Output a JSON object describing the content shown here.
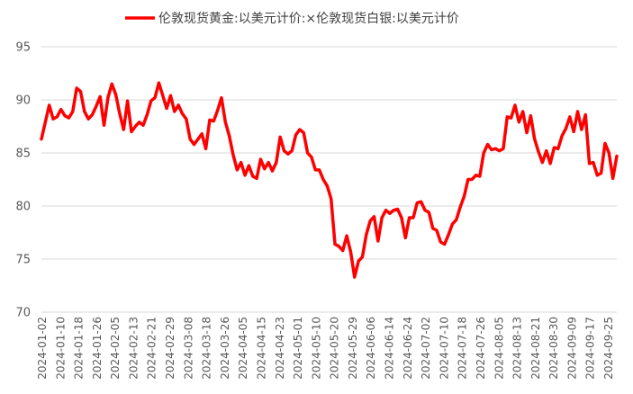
{
  "chart_data": {
    "type": "line",
    "title": "",
    "xlabel": "",
    "ylabel": "",
    "legend": {
      "position": "top-center"
    },
    "grid": true,
    "ylim": [
      70,
      95
    ],
    "yticks": [
      70,
      75,
      80,
      85,
      90,
      95
    ],
    "xticks": [
      "2024-01-02",
      "2024-01-10",
      "2024-01-18",
      "2024-01-26",
      "2024-02-05",
      "2024-02-13",
      "2024-02-21",
      "2024-02-29",
      "2024-03-08",
      "2024-03-18",
      "2024-03-26",
      "2024-04-05",
      "2024-04-15",
      "2024-04-23",
      "2024-05-01",
      "2024-05-10",
      "2024-05-20",
      "2024-05-29",
      "2024-06-06",
      "2024-06-14",
      "2024-06-24",
      "2024-07-02",
      "2024-07-10",
      "2024-07-18",
      "2024-07-26",
      "2024-08-05",
      "2024-08-13",
      "2024-08-21",
      "2024-08-30",
      "2024-09-09",
      "2024-09-17",
      "2024-09-25"
    ],
    "series": [
      {
        "name": "伦敦现货黄金:以美元计价:×伦敦现货白银:以美元计价",
        "color": "#ff0000",
        "values": [
          86.3,
          87.9,
          89.5,
          88.2,
          88.4,
          89.1,
          88.5,
          88.3,
          88.9,
          91.1,
          90.8,
          88.9,
          88.2,
          88.6,
          89.4,
          90.3,
          87.6,
          90.2,
          91.5,
          90.5,
          88.7,
          87.2,
          89.9,
          87.0,
          87.5,
          87.9,
          87.6,
          88.6,
          89.9,
          90.2,
          91.6,
          90.4,
          89.2,
          90.4,
          88.9,
          89.5,
          88.7,
          88.2,
          86.3,
          85.8,
          86.3,
          86.8,
          85.4,
          88.1,
          88.0,
          89.0,
          90.2,
          87.9,
          86.6,
          84.8,
          83.4,
          84.1,
          82.9,
          83.8,
          82.8,
          82.6,
          84.4,
          83.5,
          84.1,
          83.3,
          84.1,
          86.5,
          85.2,
          84.9,
          85.2,
          86.7,
          87.2,
          86.9,
          85.0,
          84.6,
          83.4,
          83.4,
          82.5,
          81.9,
          80.7,
          76.4,
          76.2,
          75.8,
          77.2,
          75.7,
          73.3,
          74.8,
          75.2,
          77.3,
          78.6,
          79.0,
          76.7,
          78.9,
          79.6,
          79.3,
          79.6,
          79.7,
          78.9,
          77.0,
          78.9,
          78.9,
          80.3,
          80.4,
          79.6,
          79.4,
          77.9,
          77.7,
          76.6,
          76.4,
          77.3,
          78.3,
          78.7,
          79.9,
          80.9,
          82.5,
          82.5,
          82.9,
          82.8,
          85.0,
          85.8,
          85.3,
          85.4,
          85.2,
          85.4,
          88.4,
          88.3,
          89.5,
          87.9,
          88.9,
          86.9,
          88.5,
          86.3,
          85.1,
          84.1,
          85.2,
          84.0,
          85.5,
          85.4,
          86.6,
          87.3,
          88.4,
          87.0,
          88.9,
          87.2,
          88.6,
          84.0,
          84.1,
          82.9,
          83.1,
          85.9,
          85.0,
          82.6,
          84.7
        ]
      }
    ]
  }
}
